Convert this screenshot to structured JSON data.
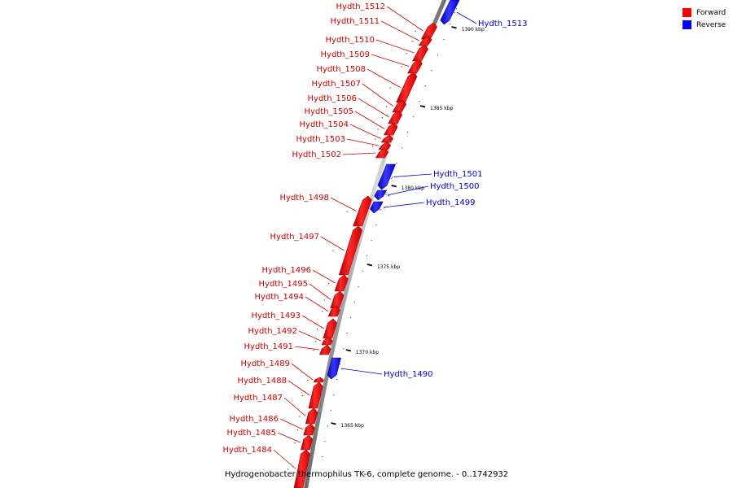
{
  "caption": "Hydrogenobacter thermophilus TK-6, complete genome. - 0..1742932",
  "colors": {
    "forward": "#ff0000",
    "reverse": "#0000ff",
    "forward_label": "#cc0000",
    "reverse_label": "#0000cc"
  },
  "legend": [
    {
      "label": "Forward",
      "color": "#ff0000"
    },
    {
      "label": "Reverse",
      "color": "#0000ff"
    }
  ],
  "ticks": [
    "1365 kbp",
    "1370 kbp",
    "1375 kbp",
    "1380 kbp",
    "1385 kbp",
    "1390 kbp"
  ],
  "genes": [
    {
      "name": "Hydth_1513",
      "strand": "reverse"
    },
    {
      "name": "Hydth_1512",
      "strand": "forward"
    },
    {
      "name": "Hydth_1511",
      "strand": "forward"
    },
    {
      "name": "Hydth_1510",
      "strand": "forward"
    },
    {
      "name": "Hydth_1509",
      "strand": "forward"
    },
    {
      "name": "Hydth_1508",
      "strand": "forward"
    },
    {
      "name": "Hydth_1507",
      "strand": "forward"
    },
    {
      "name": "Hydth_1506",
      "strand": "forward"
    },
    {
      "name": "Hydth_1505",
      "strand": "forward"
    },
    {
      "name": "Hydth_1504",
      "strand": "forward"
    },
    {
      "name": "Hydth_1503",
      "strand": "forward"
    },
    {
      "name": "Hydth_1502",
      "strand": "forward"
    },
    {
      "name": "Hydth_1501",
      "strand": "reverse"
    },
    {
      "name": "Hydth_1500",
      "strand": "reverse"
    },
    {
      "name": "Hydth_1499",
      "strand": "reverse"
    },
    {
      "name": "Hydth_1498",
      "strand": "forward"
    },
    {
      "name": "Hydth_1497",
      "strand": "forward"
    },
    {
      "name": "Hydth_1496",
      "strand": "forward"
    },
    {
      "name": "Hydth_1495",
      "strand": "forward"
    },
    {
      "name": "Hydth_1494",
      "strand": "forward"
    },
    {
      "name": "Hydth_1493",
      "strand": "forward"
    },
    {
      "name": "Hydth_1492",
      "strand": "forward"
    },
    {
      "name": "Hydth_1491",
      "strand": "forward"
    },
    {
      "name": "Hydth_1490",
      "strand": "reverse"
    },
    {
      "name": "Hydth_1489",
      "strand": "forward"
    },
    {
      "name": "Hydth_1488",
      "strand": "forward"
    },
    {
      "name": "Hydth_1487",
      "strand": "forward"
    },
    {
      "name": "Hydth_1486",
      "strand": "forward"
    },
    {
      "name": "Hydth_1485",
      "strand": "forward"
    },
    {
      "name": "Hydth_1484",
      "strand": "forward"
    }
  ]
}
